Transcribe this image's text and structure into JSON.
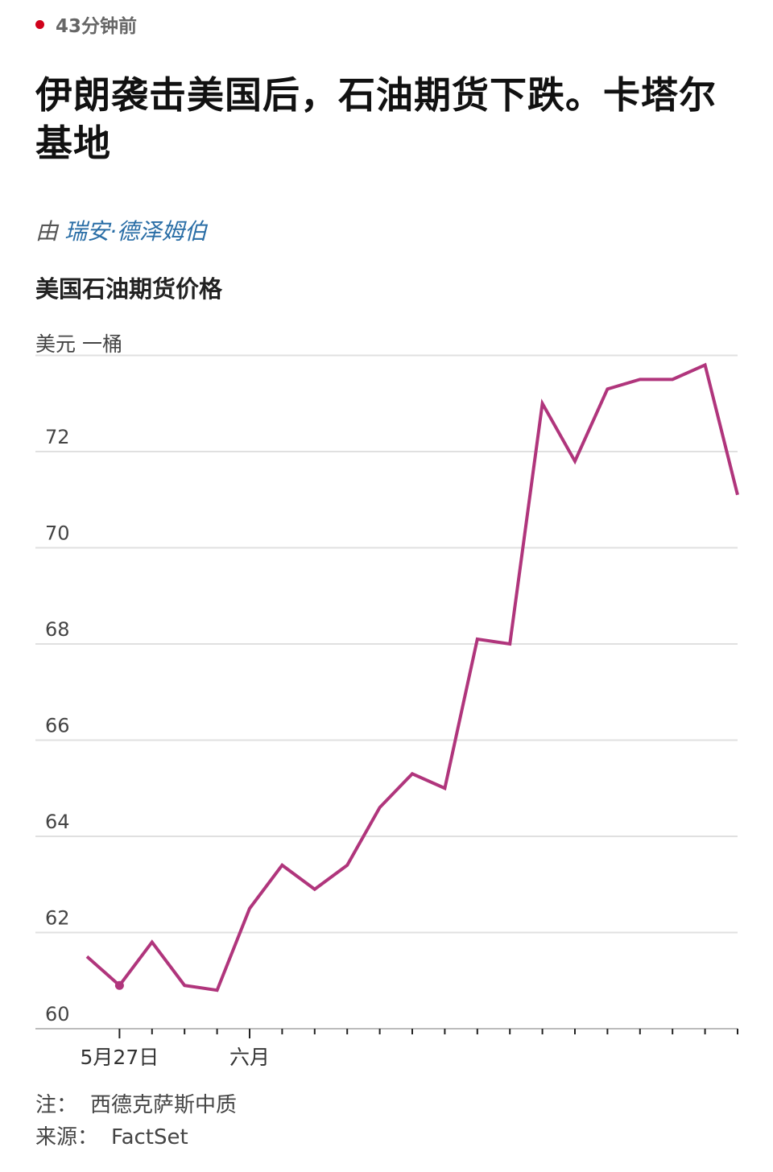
{
  "article": {
    "timestamp": "43分钟前",
    "headline": "伊朗袭击美国后，石油期货下跌。卡塔尔基地",
    "byline_prefix": "由",
    "author": "瑞安·德泽姆伯"
  },
  "colors": {
    "line": "#b0357c",
    "live_dot": "#d0021b",
    "author_link": "#2a6ea6"
  },
  "chart_data": {
    "type": "line",
    "title": "美国石油期货价格",
    "ylabel": "美元 一桶",
    "ylim": [
      60,
      74
    ],
    "yticks": [
      "60",
      "62",
      "64",
      "66",
      "68",
      "70",
      "72"
    ],
    "x_tick_labels": [
      {
        "label": "5月27日",
        "index": 1
      },
      {
        "label": "六月",
        "index": 5
      }
    ],
    "x_tick_count": 20,
    "series": [
      {
        "values": [
          61.5,
          60.9,
          61.8,
          60.9,
          60.8,
          62.5,
          63.4,
          62.9,
          63.4,
          64.6,
          65.3,
          65.0,
          68.1,
          68.0,
          73.0,
          71.8,
          73.3,
          73.5,
          73.5,
          73.8,
          71.1
        ],
        "highlight_index": 1
      }
    ],
    "grid": true
  },
  "footer": {
    "note_label": "注：",
    "note_text": "西德克萨斯中质",
    "source_label": "来源：",
    "source_text": "FactSet"
  }
}
